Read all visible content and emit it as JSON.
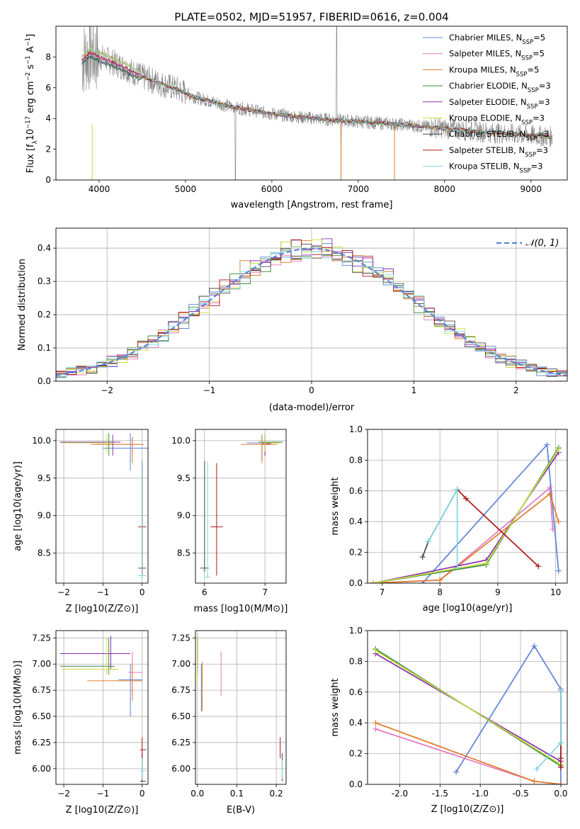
{
  "title": "PLATE=0502, MJD=51957, FIBERID=0616, z=0.004",
  "colors": {
    "chab_miles": "#5b84d8",
    "salp_miles": "#e377c2",
    "krou_miles": "#e07b28",
    "chab_elodie": "#3f8a3f",
    "salp_elodie": "#8b2fb0",
    "krou_elodie": "#c6e03c",
    "chab_stelib": "#4a4a4a",
    "salp_stelib": "#b01818",
    "krou_stelib": "#7fd6e0",
    "data": "#808080",
    "grid": "#b0b0b0"
  },
  "legend": [
    {
      "key": "chab_miles",
      "pre": "Chabrier MILES, N",
      "sub": "SSP",
      "post": "=5"
    },
    {
      "key": "salp_miles",
      "pre": "Salpeter MILES, N",
      "sub": "SSP",
      "post": "=5"
    },
    {
      "key": "krou_miles",
      "pre": "Kroupa MILES, N",
      "sub": "SSP",
      "post": "=5"
    },
    {
      "key": "chab_elodie",
      "pre": "Chabrier ELODIE, N",
      "sub": "SSP",
      "post": "=3"
    },
    {
      "key": "salp_elodie",
      "pre": "Salpeter ELODIE, N",
      "sub": "SSP",
      "post": "=3"
    },
    {
      "key": "krou_elodie",
      "pre": "Kroupa ELODIE, N",
      "sub": "SSP",
      "post": "=3"
    },
    {
      "key": "chab_stelib",
      "pre": "Chabrier STELIB, N",
      "sub": "SSP",
      "post": "=3"
    },
    {
      "key": "salp_stelib",
      "pre": "Salpeter STELIB, N",
      "sub": "SSP",
      "post": "=3"
    },
    {
      "key": "krou_stelib",
      "pre": "Kroupa STELIB, N",
      "sub": "SSP",
      "post": "=3"
    }
  ],
  "chart_data": [
    {
      "type": "line",
      "name": "spectrum",
      "xlabel": "wavelength [Angstrom, rest frame]",
      "ylabel": "Flux [f_λ 10^-17 erg cm^-2 s^-1 A^-1]",
      "xlim": [
        3500,
        9420
      ],
      "ylim": [
        0,
        10
      ],
      "xticks": [
        4000,
        5000,
        6000,
        7000,
        8000,
        9000
      ],
      "yticks": [
        0,
        2,
        4,
        6,
        8
      ],
      "continuum": [
        [
          3800,
          7.8
        ],
        [
          3900,
          8.3
        ],
        [
          4000,
          8.0
        ],
        [
          4100,
          7.8
        ],
        [
          4300,
          7.3
        ],
        [
          4500,
          6.7
        ],
        [
          4700,
          6.3
        ],
        [
          4900,
          5.9
        ],
        [
          5100,
          5.4
        ],
        [
          5300,
          5.1
        ],
        [
          5500,
          4.8
        ],
        [
          5700,
          4.6
        ],
        [
          6000,
          4.3
        ],
        [
          6300,
          4.1
        ],
        [
          6600,
          3.95
        ],
        [
          7000,
          3.8
        ],
        [
          7500,
          3.6
        ],
        [
          8000,
          3.35
        ],
        [
          8500,
          3.1
        ],
        [
          9000,
          2.9
        ],
        [
          9250,
          2.8
        ]
      ],
      "grid": false
    },
    {
      "type": "line",
      "name": "residual-histogram",
      "xlabel": "(data-model)/error",
      "ylabel": "Normed distribution",
      "xlim": [
        -2.5,
        2.5
      ],
      "ylim": [
        0,
        0.46
      ],
      "xticks": [
        -2,
        -1,
        0,
        1,
        2
      ],
      "yticks": [
        0.0,
        0.1,
        0.2,
        0.3,
        0.4
      ],
      "curve_label": "𝒩(0, 1)",
      "grid": true
    },
    {
      "type": "scatter",
      "name": "age-vs-Z",
      "xlabel": "Z [log10(Z/Z⊙)]",
      "ylabel": "age [log10(age/yr)]",
      "xlim": [
        -2.2,
        0.15
      ],
      "ylim": [
        8.1,
        10.15
      ],
      "xticks": [
        -2,
        -1,
        0
      ],
      "yticks": [
        8.5,
        9.0,
        9.5,
        10.0
      ],
      "points": [
        {
          "key": "chab_miles",
          "x": -0.3,
          "y": 9.9,
          "ex": [
            -1.0,
            0.2
          ],
          "ey": [
            9.6,
            10.1
          ]
        },
        {
          "key": "salp_miles",
          "x": -0.25,
          "y": 9.95,
          "ex": [
            -1.2,
            0.05
          ],
          "ey": [
            9.8,
            10.05
          ]
        },
        {
          "key": "krou_miles",
          "x": -0.25,
          "y": 9.95,
          "ex": [
            -1.3,
            0.0
          ],
          "ey": [
            9.7,
            10.05
          ]
        },
        {
          "key": "chab_elodie",
          "x": -0.85,
          "y": 9.98,
          "ex": [
            -2.1,
            -0.6
          ],
          "ey": [
            9.8,
            10.1
          ]
        },
        {
          "key": "salp_elodie",
          "x": -0.75,
          "y": 9.98,
          "ex": [
            -2.1,
            -0.55
          ],
          "ey": [
            9.8,
            10.08
          ]
        },
        {
          "key": "krou_elodie",
          "x": -0.9,
          "y": 9.97,
          "ex": [
            -2.05,
            -0.7
          ],
          "ey": [
            9.85,
            10.08
          ]
        },
        {
          "key": "chab_stelib",
          "x": 0.0,
          "y": 8.3,
          "ex": [
            -0.1,
            0.1
          ],
          "ey": [
            8.2,
            9.73
          ]
        },
        {
          "key": "salp_stelib",
          "x": 0.0,
          "y": 8.85,
          "ex": [
            -0.1,
            0.1
          ],
          "ey": [
            8.2,
            9.7
          ]
        },
        {
          "key": "krou_stelib",
          "x": 0.0,
          "y": 8.2,
          "ex": [
            -0.1,
            0.1
          ],
          "ey": [
            8.15,
            9.72
          ]
        }
      ],
      "grid": true
    },
    {
      "type": "scatter",
      "name": "age-vs-mass",
      "xlabel": "mass [log10(M/M⊙)]",
      "ylabel": "",
      "xlim": [
        5.85,
        7.35
      ],
      "ylim": [
        8.1,
        10.15
      ],
      "xticks": [
        6,
        7
      ],
      "yticks": [
        8.5,
        9.0,
        9.5,
        10.0
      ],
      "points": [
        {
          "key": "chab_miles",
          "x": 6.95,
          "y": 9.97,
          "ex": [
            6.7,
            7.1
          ],
          "ey": [
            9.75,
            10.08
          ]
        },
        {
          "key": "salp_miles",
          "x": 7.0,
          "y": 9.95,
          "ex": [
            6.85,
            7.1
          ],
          "ey": [
            9.8,
            10.05
          ]
        },
        {
          "key": "krou_miles",
          "x": 6.95,
          "y": 9.95,
          "ex": [
            6.6,
            7.2
          ],
          "ey": [
            9.7,
            10.05
          ]
        },
        {
          "key": "chab_elodie",
          "x": 7.0,
          "y": 9.98,
          "ex": [
            6.9,
            7.3
          ],
          "ey": [
            9.8,
            10.08
          ]
        },
        {
          "key": "salp_elodie",
          "x": 7.0,
          "y": 9.96,
          "ex": [
            6.95,
            7.1
          ],
          "ey": [
            9.8,
            10.08
          ]
        },
        {
          "key": "krou_elodie",
          "x": 7.0,
          "y": 9.97,
          "ex": [
            6.92,
            7.25
          ],
          "ey": [
            9.85,
            10.1
          ]
        },
        {
          "key": "chab_stelib",
          "x": 6.0,
          "y": 8.3,
          "ex": [
            5.93,
            6.07
          ],
          "ey": [
            8.25,
            9.73
          ]
        },
        {
          "key": "salp_stelib",
          "x": 6.2,
          "y": 8.85,
          "ex": [
            6.1,
            6.3
          ],
          "ey": [
            8.2,
            9.7
          ]
        },
        {
          "key": "krou_stelib",
          "x": 6.05,
          "y": 8.18,
          "ex": [
            6.0,
            6.1
          ],
          "ey": [
            8.17,
            9.72
          ]
        }
      ],
      "grid": true
    },
    {
      "type": "line",
      "name": "mass-weight-vs-age",
      "xlabel": "age [log10(age/yr)]",
      "ylabel": "mass weight",
      "xlim": [
        6.75,
        10.2
      ],
      "ylim": [
        0,
        1
      ],
      "xticks": [
        7,
        8,
        9,
        10
      ],
      "yticks": [
        0.0,
        0.2,
        0.4,
        0.6,
        0.8,
        1.0
      ],
      "series": [
        {
          "key": "chab_miles",
          "x": [
            7.7,
            9.85,
            10.05
          ],
          "y": [
            0.0,
            0.9,
            0.08
          ]
        },
        {
          "key": "salp_miles",
          "x": [
            6.85,
            8.0,
            9.9,
            9.95
          ],
          "y": [
            0.0,
            0.02,
            0.62,
            0.35
          ]
        },
        {
          "key": "krou_miles",
          "x": [
            6.85,
            8.0,
            9.9,
            10.05
          ],
          "y": [
            0.0,
            0.02,
            0.58,
            0.4
          ]
        },
        {
          "key": "chab_elodie",
          "x": [
            6.85,
            8.8,
            10.05
          ],
          "y": [
            0.0,
            0.12,
            0.88
          ]
        },
        {
          "key": "salp_elodie",
          "x": [
            6.85,
            8.8,
            10.05
          ],
          "y": [
            0.0,
            0.15,
            0.85
          ]
        },
        {
          "key": "krou_elodie",
          "x": [
            6.85,
            8.8,
            10.05
          ],
          "y": [
            0.0,
            0.13,
            0.87
          ]
        },
        {
          "key": "chab_stelib",
          "x": [
            7.7,
            7.8,
            8.3
          ],
          "y": [
            0.17,
            0.27,
            0.61
          ]
        },
        {
          "key": "salp_stelib",
          "x": [
            8.3,
            8.45,
            9.7
          ],
          "y": [
            0.61,
            0.55,
            0.11
          ]
        },
        {
          "key": "krou_stelib",
          "x": [
            7.8,
            8.3,
            8.3
          ],
          "y": [
            0.27,
            0.61,
            0.1
          ]
        }
      ],
      "grid": true
    },
    {
      "type": "scatter",
      "name": "mass-vs-Z",
      "xlabel": "Z [log10(Z/Z⊙)]",
      "ylabel": "mass [log10(M/M⊙)]",
      "xlim": [
        -2.2,
        0.15
      ],
      "ylim": [
        5.85,
        7.32
      ],
      "xticks": [
        -2,
        -1,
        0
      ],
      "yticks": [
        6.0,
        6.25,
        6.5,
        6.75,
        7.0,
        7.25
      ],
      "points": [
        {
          "key": "chab_miles",
          "x": -0.3,
          "y": 6.85,
          "ex": [
            -0.6,
            0.0
          ],
          "ey": [
            6.5,
            7.0
          ]
        },
        {
          "key": "salp_miles",
          "x": -0.25,
          "y": 6.92,
          "ex": [
            -0.35,
            0.0
          ],
          "ey": [
            6.7,
            7.12
          ]
        },
        {
          "key": "krou_miles",
          "x": -0.25,
          "y": 6.84,
          "ex": [
            -1.4,
            0.0
          ],
          "ey": [
            6.65,
            7.0
          ]
        },
        {
          "key": "chab_elodie",
          "x": -0.85,
          "y": 6.98,
          "ex": [
            -2.1,
            -0.7
          ],
          "ey": [
            6.9,
            7.25
          ]
        },
        {
          "key": "salp_elodie",
          "x": -0.8,
          "y": 7.1,
          "ex": [
            -2.1,
            -0.3
          ],
          "ey": [
            6.95,
            7.27
          ]
        },
        {
          "key": "krou_elodie",
          "x": -0.9,
          "y": 6.95,
          "ex": [
            -2.05,
            -0.6
          ],
          "ey": [
            6.9,
            7.25
          ]
        },
        {
          "key": "chab_stelib",
          "x": 0.0,
          "y": 5.88,
          "ex": [
            -0.05,
            0.1
          ],
          "ey": [
            5.87,
            6.15
          ]
        },
        {
          "key": "salp_stelib",
          "x": 0.0,
          "y": 6.18,
          "ex": [
            -0.05,
            0.1
          ],
          "ey": [
            6.1,
            6.3
          ]
        },
        {
          "key": "krou_stelib",
          "x": 0.0,
          "y": 5.98,
          "ex": [
            -0.05,
            0.1
          ],
          "ey": [
            5.9,
            6.1
          ]
        }
      ],
      "grid": true
    },
    {
      "type": "scatter",
      "name": "mass-vs-EBV",
      "xlabel": "E(B-V)",
      "ylabel": "",
      "xlim": [
        -0.005,
        0.225
      ],
      "ylim": [
        5.85,
        7.32
      ],
      "xticks": [
        0.0,
        0.1,
        0.2
      ],
      "yticks": [
        6.0,
        6.25,
        6.5,
        6.75,
        7.0,
        7.25
      ],
      "points": [
        {
          "key": "chab_miles",
          "x": 0.01,
          "ey": [
            6.55,
            7.0
          ]
        },
        {
          "key": "salp_miles",
          "x": 0.06,
          "ey": [
            6.7,
            7.12
          ]
        },
        {
          "key": "krou_miles",
          "x": 0.012,
          "ey": [
            6.55,
            7.02
          ]
        },
        {
          "key": "chab_elodie",
          "x": 0.0,
          "ey": [
            6.9,
            7.25
          ]
        },
        {
          "key": "salp_elodie",
          "x": 0.0,
          "ey": [
            6.95,
            7.27
          ]
        },
        {
          "key": "krou_elodie",
          "x": 0.0,
          "ey": [
            6.8,
            7.27
          ]
        },
        {
          "key": "chab_stelib",
          "x": 0.215,
          "ey": [
            5.88,
            6.15
          ]
        },
        {
          "key": "salp_stelib",
          "x": 0.21,
          "ey": [
            6.1,
            6.3
          ]
        },
        {
          "key": "krou_stelib",
          "x": 0.215,
          "ey": [
            5.9,
            6.08
          ]
        }
      ],
      "grid": true
    },
    {
      "type": "line",
      "name": "mass-weight-vs-Z",
      "xlabel": "Z [log10(Z/Z⊙)]",
      "ylabel": "mass weight",
      "xlim": [
        -2.4,
        0.08
      ],
      "ylim": [
        0,
        1
      ],
      "xticks": [
        -2.0,
        -1.5,
        -1.0,
        -0.5,
        0.0
      ],
      "yticks": [
        0.0,
        0.2,
        0.4,
        0.6,
        0.8,
        1.0
      ],
      "series": [
        {
          "key": "chab_miles",
          "x": [
            -1.3,
            -0.33,
            0.0,
            0.0
          ],
          "y": [
            0.08,
            0.9,
            0.62,
            0.0
          ]
        },
        {
          "key": "salp_miles",
          "x": [
            -2.3,
            -0.33,
            0.0
          ],
          "y": [
            0.36,
            0.02,
            0.0
          ]
        },
        {
          "key": "krou_miles",
          "x": [
            -2.3,
            -0.33,
            0.0
          ],
          "y": [
            0.4,
            0.02,
            0.0
          ]
        },
        {
          "key": "chab_elodie",
          "x": [
            -2.3,
            0.0
          ],
          "y": [
            0.88,
            0.12
          ]
        },
        {
          "key": "salp_elodie",
          "x": [
            -2.3,
            0.0
          ],
          "y": [
            0.85,
            0.15
          ]
        },
        {
          "key": "krou_elodie",
          "x": [
            -2.3,
            0.0
          ],
          "y": [
            0.87,
            0.13
          ]
        },
        {
          "key": "chab_stelib",
          "x": [
            0.0,
            0.0,
            0.0
          ],
          "y": [
            0.17,
            0.27,
            0.61
          ]
        },
        {
          "key": "salp_stelib",
          "x": [
            0.0,
            0.0
          ],
          "y": [
            0.61,
            0.11
          ]
        },
        {
          "key": "krou_stelib",
          "x": [
            -0.3,
            0.0,
            0.0
          ],
          "y": [
            0.1,
            0.27,
            0.61
          ]
        }
      ],
      "grid": true
    }
  ]
}
